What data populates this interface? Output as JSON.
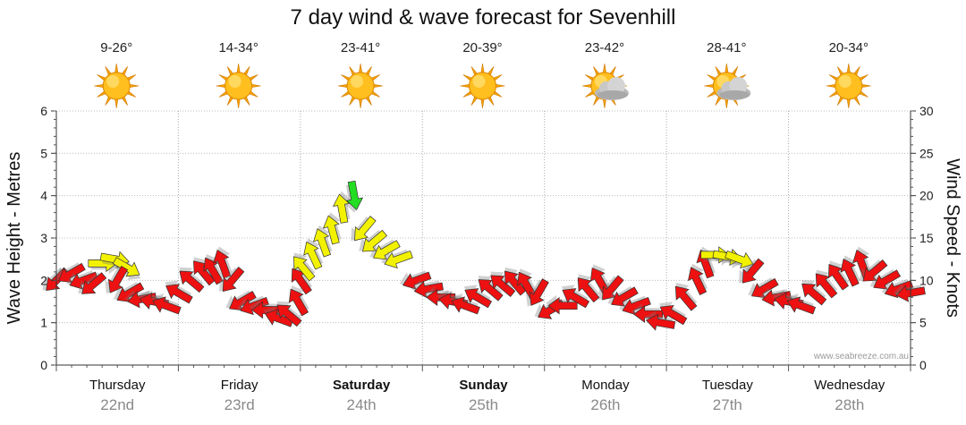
{
  "chart_data": {
    "type": "line",
    "title": "7 day wind & wave forecast for Sevenhill",
    "y_left_label": "Wave Height - Metres",
    "y_right_label": "Wind Speed - Knots",
    "y_left_range": [
      0,
      6
    ],
    "y_left_ticks": [
      "0",
      "1",
      "2",
      "3",
      "4",
      "5",
      "6"
    ],
    "y_right_range": [
      0,
      30
    ],
    "y_right_ticks": [
      "0",
      "5",
      "10",
      "15",
      "20",
      "25",
      "30"
    ],
    "grid": "dotted",
    "days": [
      {
        "name": "Thursday",
        "date": "22nd",
        "temp": "9-26°",
        "weather": "sunny",
        "bold": false
      },
      {
        "name": "Friday",
        "date": "23rd",
        "temp": "14-34°",
        "weather": "sunny",
        "bold": false
      },
      {
        "name": "Saturday",
        "date": "24th",
        "temp": "23-41°",
        "weather": "sunny",
        "bold": true
      },
      {
        "name": "Sunday",
        "date": "25th",
        "temp": "20-39°",
        "weather": "sunny",
        "bold": true
      },
      {
        "name": "Monday",
        "date": "26th",
        "temp": "23-42°",
        "weather": "partly-cloudy",
        "bold": false
      },
      {
        "name": "Tuesday",
        "date": "27th",
        "temp": "28-41°",
        "weather": "partly-cloudy",
        "bold": false
      },
      {
        "name": "Wednesday",
        "date": "28th",
        "temp": "20-34°",
        "weather": "sunny",
        "bold": false
      }
    ],
    "series": [
      {
        "name": "Wind arrows",
        "colors": {
          "red": "#ee1111",
          "yellow": "#f2f200",
          "green": "#22dd22"
        },
        "points": [
          [
            0.0,
            10.0,
            135,
            "red"
          ],
          [
            0.12,
            10.8,
            150,
            "red"
          ],
          [
            0.22,
            10.0,
            160,
            "red"
          ],
          [
            0.3,
            9.5,
            140,
            "red"
          ],
          [
            0.38,
            12.0,
            0,
            "yellow"
          ],
          [
            0.48,
            12.5,
            10,
            "yellow"
          ],
          [
            0.58,
            11.5,
            30,
            "yellow"
          ],
          [
            0.5,
            10.0,
            120,
            "red"
          ],
          [
            0.6,
            8.5,
            150,
            "red"
          ],
          [
            0.7,
            7.8,
            170,
            "red"
          ],
          [
            0.8,
            7.5,
            190,
            "red"
          ],
          [
            0.9,
            7.0,
            200,
            "red"
          ],
          [
            1.0,
            8.5,
            210,
            "red"
          ],
          [
            1.1,
            10.0,
            220,
            "red"
          ],
          [
            1.2,
            11.0,
            230,
            "red"
          ],
          [
            1.28,
            11.2,
            240,
            "red"
          ],
          [
            1.36,
            12.0,
            250,
            "red"
          ],
          [
            1.44,
            10.0,
            130,
            "red"
          ],
          [
            1.52,
            7.5,
            150,
            "red"
          ],
          [
            1.62,
            7.0,
            160,
            "red"
          ],
          [
            1.72,
            6.5,
            180,
            "red"
          ],
          [
            1.82,
            5.5,
            200,
            "red"
          ],
          [
            1.9,
            6.0,
            220,
            "red"
          ],
          [
            1.98,
            7.5,
            240,
            "red"
          ],
          [
            2.0,
            10.0,
            235,
            "red"
          ],
          [
            2.02,
            11.5,
            230,
            "yellow"
          ],
          [
            2.1,
            13.0,
            245,
            "yellow"
          ],
          [
            2.18,
            14.5,
            250,
            "yellow"
          ],
          [
            2.26,
            16.0,
            255,
            "yellow"
          ],
          [
            2.34,
            18.5,
            260,
            "yellow"
          ],
          [
            2.44,
            20.0,
            80,
            "green"
          ],
          [
            2.52,
            16.0,
            130,
            "yellow"
          ],
          [
            2.6,
            14.5,
            140,
            "yellow"
          ],
          [
            2.7,
            13.5,
            150,
            "yellow"
          ],
          [
            2.8,
            12.5,
            160,
            "yellow"
          ],
          [
            2.95,
            10.0,
            160,
            "red"
          ],
          [
            3.05,
            9.0,
            170,
            "red"
          ],
          [
            3.15,
            8.0,
            180,
            "red"
          ],
          [
            3.25,
            7.5,
            190,
            "red"
          ],
          [
            3.35,
            7.0,
            200,
            "red"
          ],
          [
            3.45,
            8.0,
            210,
            "red"
          ],
          [
            3.55,
            9.0,
            220,
            "red"
          ],
          [
            3.65,
            9.5,
            220,
            "red"
          ],
          [
            3.75,
            9.8,
            230,
            "red"
          ],
          [
            3.85,
            9.5,
            240,
            "red"
          ],
          [
            3.95,
            8.5,
            120,
            "red"
          ],
          [
            4.05,
            6.5,
            150,
            "red"
          ],
          [
            4.15,
            7.0,
            180,
            "red"
          ],
          [
            4.25,
            8.0,
            210,
            "red"
          ],
          [
            4.35,
            9.0,
            230,
            "red"
          ],
          [
            4.45,
            10.0,
            240,
            "red"
          ],
          [
            4.55,
            9.0,
            130,
            "red"
          ],
          [
            4.65,
            8.0,
            150,
            "red"
          ],
          [
            4.75,
            7.0,
            160,
            "red"
          ],
          [
            4.85,
            6.0,
            180,
            "red"
          ],
          [
            4.95,
            5.0,
            190,
            "red"
          ],
          [
            5.05,
            6.0,
            210,
            "red"
          ],
          [
            5.15,
            8.0,
            230,
            "red"
          ],
          [
            5.25,
            10.0,
            245,
            "red"
          ],
          [
            5.32,
            12.0,
            250,
            "red"
          ],
          [
            5.4,
            13.0,
            0,
            "yellow"
          ],
          [
            5.5,
            12.8,
            10,
            "yellow"
          ],
          [
            5.6,
            12.5,
            20,
            "yellow"
          ],
          [
            5.7,
            11.0,
            130,
            "red"
          ],
          [
            5.8,
            9.0,
            150,
            "red"
          ],
          [
            5.9,
            8.0,
            170,
            "red"
          ],
          [
            6.0,
            7.5,
            190,
            "red"
          ],
          [
            6.1,
            7.0,
            200,
            "red"
          ],
          [
            6.2,
            8.5,
            220,
            "red"
          ],
          [
            6.3,
            9.5,
            230,
            "red"
          ],
          [
            6.4,
            10.5,
            235,
            "red"
          ],
          [
            6.5,
            11.0,
            245,
            "red"
          ],
          [
            6.6,
            12.0,
            250,
            "red"
          ],
          [
            6.7,
            11.0,
            140,
            "red"
          ],
          [
            6.8,
            10.0,
            150,
            "red"
          ],
          [
            6.9,
            9.0,
            160,
            "red"
          ],
          [
            7.0,
            8.5,
            170,
            "red"
          ]
        ]
      }
    ],
    "credit": "www.seabreeze.com.au"
  }
}
